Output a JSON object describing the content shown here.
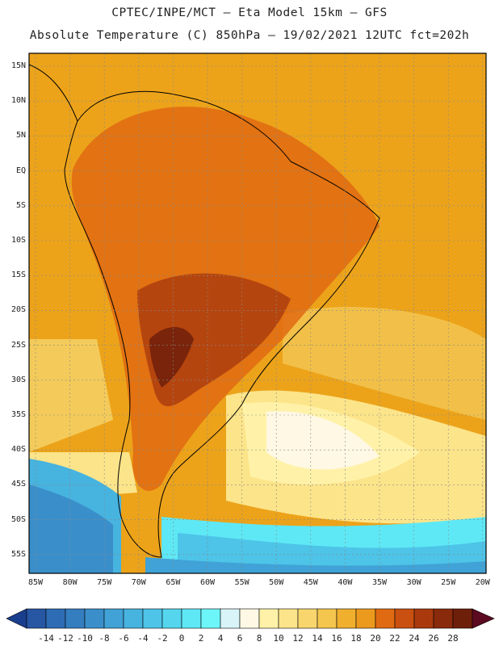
{
  "header": {
    "line1": "CPTEC/INPE/MCT –  Eta Model 15km – GFS",
    "line2": "Absolute Temperature (C) 850hPa – 19/02/2021 12UTC fct=202h"
  },
  "map": {
    "lat_labels": [
      "15N",
      "10N",
      "5N",
      "EQ",
      "5S",
      "10S",
      "15S",
      "20S",
      "25S",
      "30S",
      "35S",
      "40S",
      "45S",
      "50S",
      "55S"
    ],
    "lon_labels": [
      "85W",
      "80W",
      "75W",
      "70W",
      "65W",
      "60W",
      "55W",
      "50W",
      "45W",
      "40W",
      "35W",
      "30W",
      "25W",
      "20W"
    ],
    "field": "temperature-850hPa",
    "background_color": "#ECA31A"
  },
  "colorbar": {
    "labels": [
      "-14",
      "-12",
      "-10",
      "-8",
      "-6",
      "-4",
      "-2",
      "0",
      "2",
      "4",
      "6",
      "8",
      "10",
      "12",
      "14",
      "16",
      "18",
      "20",
      "22",
      "24",
      "26",
      "28"
    ],
    "colors": [
      "#1A3E8E",
      "#2756A3",
      "#2E6DB5",
      "#347EC0",
      "#3A8FCB",
      "#40A2D6",
      "#47B3DF",
      "#4DC4E8",
      "#55D6EE",
      "#5EE8F5",
      "#6DF6FA",
      "#D8F4F8",
      "#FFF8E4",
      "#FFF2A8",
      "#FCE48A",
      "#F9D66D",
      "#F5C64E",
      "#F0B02E",
      "#EC9A1E",
      "#E06A12",
      "#C95010",
      "#AA3A0E",
      "#8A2A0C",
      "#6E1F0A",
      "#5C0A22"
    ]
  }
}
